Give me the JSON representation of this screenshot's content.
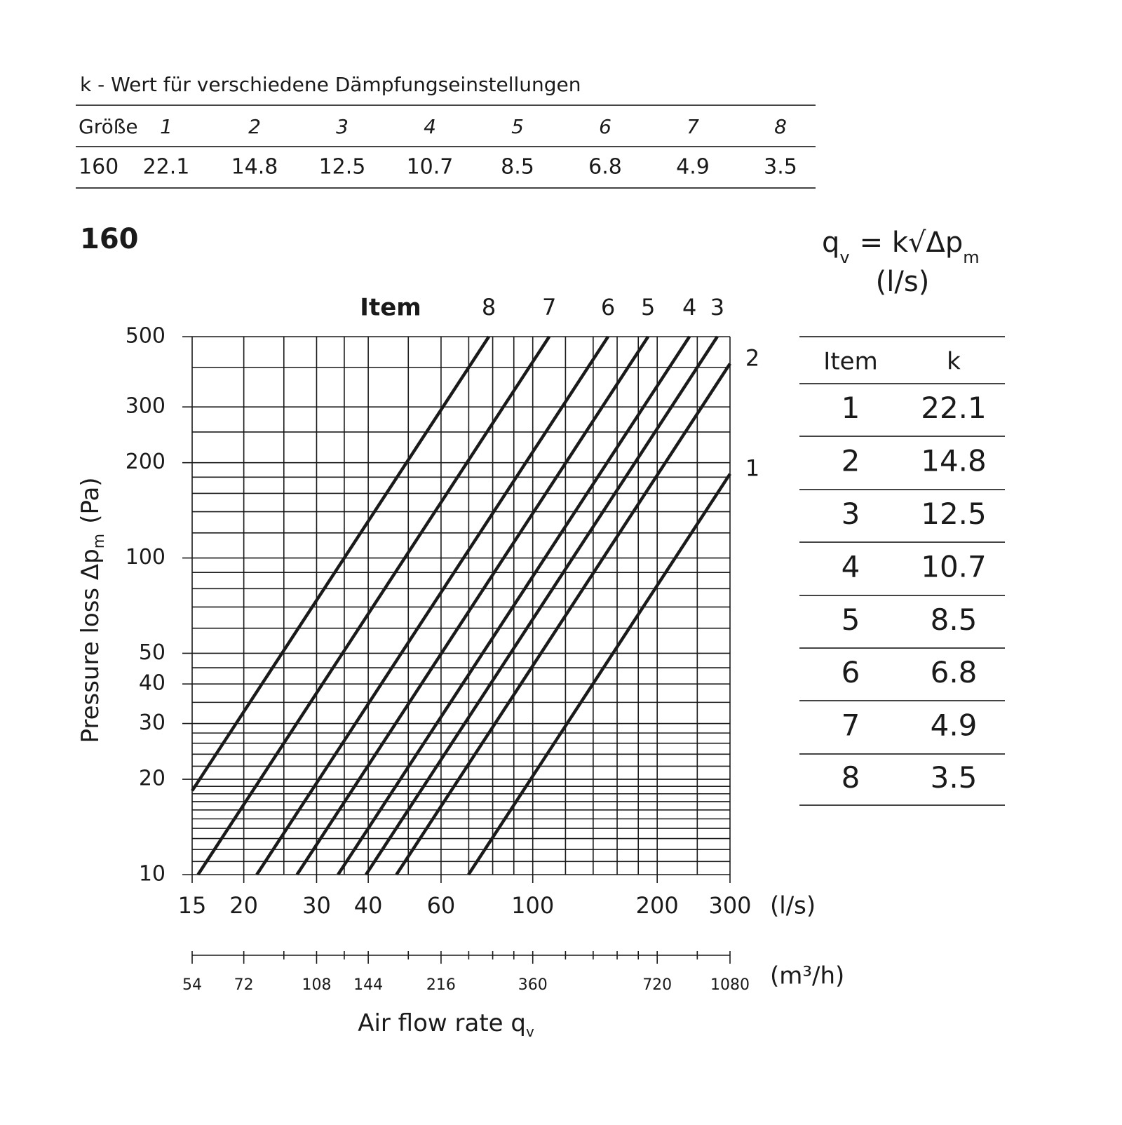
{
  "k_table": {
    "title": "k - Wert für verschiedene Dämpfungseinstellungen",
    "header": [
      "Größe",
      "1",
      "2",
      "3",
      "4",
      "5",
      "6",
      "7",
      "8"
    ],
    "row": [
      160,
      22.1,
      14.8,
      12.5,
      10.7,
      8.5,
      6.8,
      4.9,
      3.5
    ]
  },
  "size_title": "160",
  "formula": {
    "q": "q",
    "q_sub": "v",
    "rest": "= k√Δp",
    "rest_sub": "m",
    "unit": "(l/s)"
  },
  "item_table": {
    "header": [
      "Item",
      "k"
    ],
    "rows": [
      [
        1,
        22.1
      ],
      [
        2,
        14.8
      ],
      [
        3,
        12.5
      ],
      [
        4,
        10.7
      ],
      [
        5,
        8.5
      ],
      [
        6,
        6.8
      ],
      [
        7,
        4.9
      ],
      [
        8,
        3.5
      ]
    ]
  },
  "chart_data": {
    "type": "line",
    "series_heading": "Item",
    "xlabel": {
      "text": "Air flow rate q",
      "sub": "v"
    },
    "ylabel": {
      "text": "Pressure loss Δp",
      "sub": "m",
      "unit": "(Pa)"
    },
    "xunit": "(l/s)",
    "x2unit": "(m³/h)",
    "xscale": "log",
    "yscale": "log",
    "grid": true,
    "xlim": [
      15,
      300
    ],
    "ylim": [
      10,
      500
    ],
    "xticks": [
      15,
      20,
      30,
      40,
      60,
      100,
      200,
      300
    ],
    "xgrid": [
      25,
      35,
      50,
      70,
      80,
      90,
      120,
      140,
      160,
      180,
      250
    ],
    "yticks": [
      10,
      20,
      30,
      40,
      50,
      100,
      200,
      300,
      500
    ],
    "ygrid": [
      11,
      12,
      13,
      14,
      15,
      16,
      17,
      18,
      19,
      22,
      24,
      26,
      28,
      35,
      45,
      60,
      70,
      80,
      90,
      120,
      140,
      160,
      180,
      250,
      400
    ],
    "x2lim": [
      54,
      1080
    ],
    "x2ticks": [
      54,
      72,
      108,
      144,
      216,
      360,
      720,
      1080
    ],
    "series": [
      {
        "name": "1",
        "color": "#1a1a1a",
        "x": [
          69.9,
          300
        ],
        "values": [
          10,
          184.3
        ]
      },
      {
        "name": "2",
        "color": "#1a1a1a",
        "x": [
          46.8,
          300
        ],
        "values": [
          10,
          410.9
        ]
      },
      {
        "name": "3",
        "color": "#1a1a1a",
        "x": [
          39.5,
          279.5
        ],
        "values": [
          10,
          500
        ]
      },
      {
        "name": "4",
        "color": "#1a1a1a",
        "x": [
          33.8,
          239.3
        ],
        "values": [
          10,
          500
        ]
      },
      {
        "name": "5",
        "color": "#1a1a1a",
        "x": [
          26.9,
          190.1
        ],
        "values": [
          10,
          500
        ]
      },
      {
        "name": "6",
        "color": "#1a1a1a",
        "x": [
          21.5,
          152.1
        ],
        "values": [
          10,
          500
        ]
      },
      {
        "name": "7",
        "color": "#1a1a1a",
        "x": [
          15.5,
          109.6
        ],
        "values": [
          10,
          500
        ]
      },
      {
        "name": "8",
        "color": "#1a1a1a",
        "x": [
          15,
          78.3
        ],
        "values": [
          18.4,
          500
        ]
      }
    ]
  }
}
